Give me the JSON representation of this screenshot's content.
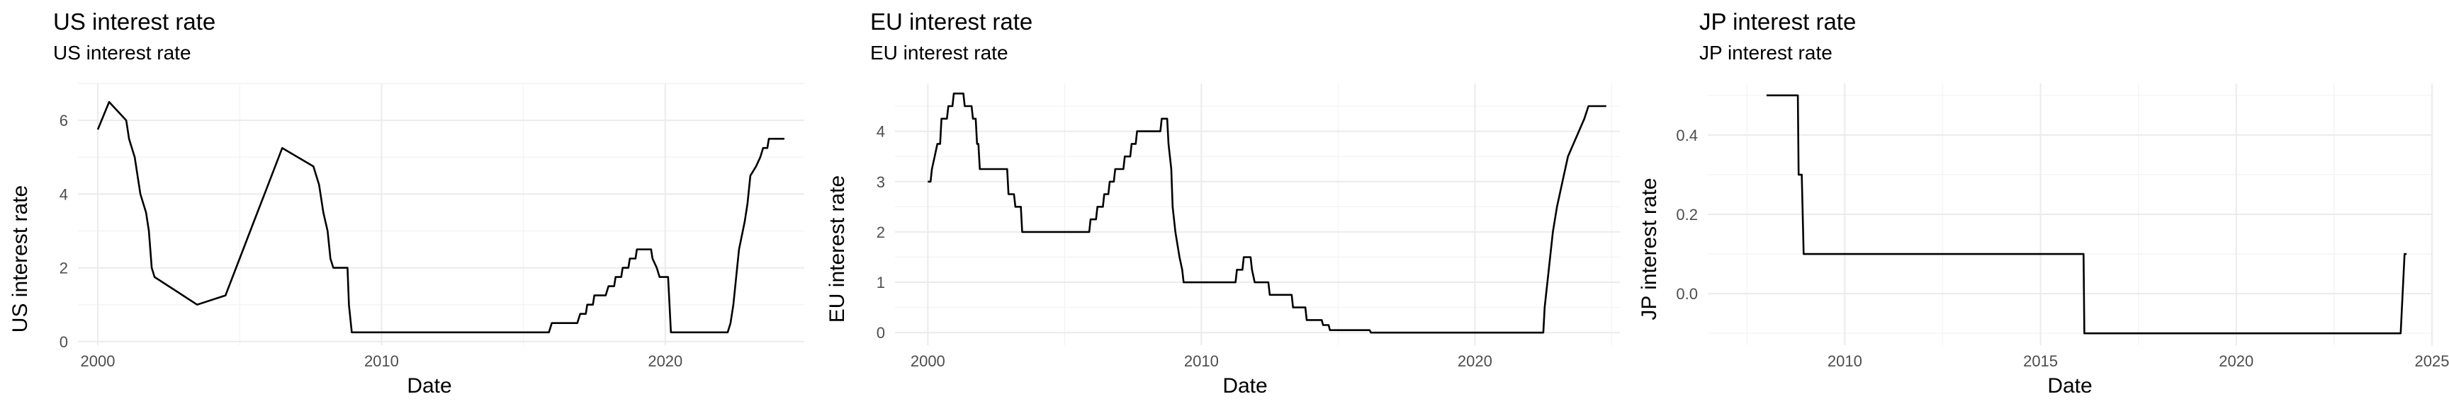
{
  "chart_data": [
    {
      "type": "line",
      "title": "US interest rate",
      "subtitle": "US interest rate",
      "xlabel": "Date",
      "ylabel": "US interest rate",
      "xlim": [
        1999.3,
        2024.9
      ],
      "ylim": [
        -0.1,
        7.0
      ],
      "x_ticks": [
        2000,
        2010,
        2020
      ],
      "y_ticks": [
        0,
        2,
        4,
        6
      ],
      "grid": true,
      "legend": "none",
      "series": [
        {
          "name": "US interest rate",
          "points": [
            [
              2000.0,
              5.75
            ],
            [
              2000.4,
              6.5
            ],
            [
              2001.0,
              6.0
            ],
            [
              2001.1,
              5.5
            ],
            [
              2001.3,
              5.0
            ],
            [
              2001.4,
              4.5
            ],
            [
              2001.5,
              4.0
            ],
            [
              2001.6,
              3.75
            ],
            [
              2001.7,
              3.5
            ],
            [
              2001.8,
              3.0
            ],
            [
              2001.85,
              2.5
            ],
            [
              2001.9,
              2.0
            ],
            [
              2002.0,
              1.75
            ],
            [
              2003.0,
              1.25
            ],
            [
              2003.5,
              1.0
            ],
            [
              2004.5,
              1.25
            ],
            [
              2005.0,
              2.25
            ],
            [
              2005.5,
              3.25
            ],
            [
              2006.0,
              4.25
            ],
            [
              2006.5,
              5.25
            ],
            [
              2007.6,
              4.75
            ],
            [
              2007.8,
              4.25
            ],
            [
              2007.95,
              3.5
            ],
            [
              2008.1,
              3.0
            ],
            [
              2008.2,
              2.25
            ],
            [
              2008.3,
              2.0
            ],
            [
              2008.8,
              2.0
            ],
            [
              2008.85,
              1.0
            ],
            [
              2008.95,
              0.25
            ],
            [
              2015.9,
              0.25
            ],
            [
              2016.0,
              0.5
            ],
            [
              2016.9,
              0.5
            ],
            [
              2017.0,
              0.75
            ],
            [
              2017.2,
              0.75
            ],
            [
              2017.25,
              1.0
            ],
            [
              2017.45,
              1.0
            ],
            [
              2017.5,
              1.25
            ],
            [
              2017.9,
              1.25
            ],
            [
              2018.0,
              1.5
            ],
            [
              2018.2,
              1.5
            ],
            [
              2018.25,
              1.75
            ],
            [
              2018.45,
              1.75
            ],
            [
              2018.5,
              2.0
            ],
            [
              2018.7,
              2.0
            ],
            [
              2018.75,
              2.25
            ],
            [
              2018.95,
              2.25
            ],
            [
              2019.0,
              2.5
            ],
            [
              2019.5,
              2.5
            ],
            [
              2019.55,
              2.25
            ],
            [
              2019.7,
              2.0
            ],
            [
              2019.8,
              1.75
            ],
            [
              2020.1,
              1.75
            ],
            [
              2020.15,
              1.0
            ],
            [
              2020.2,
              0.25
            ],
            [
              2022.2,
              0.25
            ],
            [
              2022.3,
              0.5
            ],
            [
              2022.4,
              1.0
            ],
            [
              2022.5,
              1.75
            ],
            [
              2022.6,
              2.5
            ],
            [
              2022.8,
              3.25
            ],
            [
              2022.9,
              3.75
            ],
            [
              2023.0,
              4.5
            ],
            [
              2023.2,
              4.75
            ],
            [
              2023.35,
              5.0
            ],
            [
              2023.45,
              5.25
            ],
            [
              2023.6,
              5.25
            ],
            [
              2023.65,
              5.5
            ],
            [
              2024.2,
              5.5
            ]
          ]
        }
      ]
    },
    {
      "type": "line",
      "title": "EU interest rate",
      "subtitle": "EU interest rate",
      "xlabel": "Date",
      "ylabel": "EU interest rate",
      "xlim": [
        1998.8,
        2025.3
      ],
      "ylim": [
        -0.25,
        4.95
      ],
      "x_ticks": [
        2000,
        2010,
        2020
      ],
      "y_ticks": [
        0,
        1,
        2,
        3,
        4
      ],
      "grid": true,
      "legend": "none",
      "series": [
        {
          "name": "EU interest rate",
          "points": [
            [
              2000.0,
              3.0
            ],
            [
              2000.1,
              3.0
            ],
            [
              2000.15,
              3.25
            ],
            [
              2000.25,
              3.5
            ],
            [
              2000.35,
              3.75
            ],
            [
              2000.45,
              3.75
            ],
            [
              2000.5,
              4.25
            ],
            [
              2000.7,
              4.25
            ],
            [
              2000.75,
              4.5
            ],
            [
              2000.9,
              4.5
            ],
            [
              2000.95,
              4.75
            ],
            [
              2001.3,
              4.75
            ],
            [
              2001.35,
              4.5
            ],
            [
              2001.6,
              4.5
            ],
            [
              2001.65,
              4.25
            ],
            [
              2001.75,
              4.25
            ],
            [
              2001.8,
              3.75
            ],
            [
              2001.85,
              3.75
            ],
            [
              2001.9,
              3.25
            ],
            [
              2002.9,
              3.25
            ],
            [
              2002.95,
              2.75
            ],
            [
              2003.15,
              2.75
            ],
            [
              2003.2,
              2.5
            ],
            [
              2003.4,
              2.5
            ],
            [
              2003.45,
              2.0
            ],
            [
              2005.9,
              2.0
            ],
            [
              2005.95,
              2.25
            ],
            [
              2006.15,
              2.25
            ],
            [
              2006.2,
              2.5
            ],
            [
              2006.4,
              2.5
            ],
            [
              2006.45,
              2.75
            ],
            [
              2006.6,
              2.75
            ],
            [
              2006.65,
              3.0
            ],
            [
              2006.8,
              3.0
            ],
            [
              2006.85,
              3.25
            ],
            [
              2007.15,
              3.25
            ],
            [
              2007.2,
              3.5
            ],
            [
              2007.4,
              3.5
            ],
            [
              2007.45,
              3.75
            ],
            [
              2007.6,
              3.75
            ],
            [
              2007.65,
              4.0
            ],
            [
              2008.5,
              4.0
            ],
            [
              2008.55,
              4.25
            ],
            [
              2008.75,
              4.25
            ],
            [
              2008.8,
              3.75
            ],
            [
              2008.9,
              3.25
            ],
            [
              2008.95,
              2.5
            ],
            [
              2009.05,
              2.0
            ],
            [
              2009.2,
              1.5
            ],
            [
              2009.3,
              1.25
            ],
            [
              2009.35,
              1.0
            ],
            [
              2011.25,
              1.0
            ],
            [
              2011.3,
              1.25
            ],
            [
              2011.5,
              1.25
            ],
            [
              2011.55,
              1.5
            ],
            [
              2011.8,
              1.5
            ],
            [
              2011.85,
              1.25
            ],
            [
              2011.95,
              1.0
            ],
            [
              2012.45,
              1.0
            ],
            [
              2012.5,
              0.75
            ],
            [
              2013.3,
              0.75
            ],
            [
              2013.35,
              0.5
            ],
            [
              2013.8,
              0.5
            ],
            [
              2013.85,
              0.25
            ],
            [
              2014.4,
              0.25
            ],
            [
              2014.45,
              0.15
            ],
            [
              2014.65,
              0.15
            ],
            [
              2014.7,
              0.05
            ],
            [
              2016.15,
              0.05
            ],
            [
              2016.2,
              0.0
            ],
            [
              2022.5,
              0.0
            ],
            [
              2022.55,
              0.5
            ],
            [
              2022.7,
              1.25
            ],
            [
              2022.85,
              2.0
            ],
            [
              2023.0,
              2.5
            ],
            [
              2023.2,
              3.0
            ],
            [
              2023.4,
              3.5
            ],
            [
              2023.6,
              3.75
            ],
            [
              2023.8,
              4.0
            ],
            [
              2024.0,
              4.25
            ],
            [
              2024.15,
              4.5
            ],
            [
              2024.8,
              4.5
            ]
          ]
        }
      ]
    },
    {
      "type": "line",
      "title": "JP interest rate",
      "subtitle": "JP interest rate",
      "xlabel": "Date",
      "ylabel": "JP interest rate",
      "xlim": [
        2006.5,
        2025.0
      ],
      "ylim": [
        -0.13,
        0.53
      ],
      "x_ticks": [
        2010,
        2015,
        2020,
        2025
      ],
      "y_ticks": [
        0.0,
        0.2,
        0.4
      ],
      "grid": true,
      "legend": "none",
      "series": [
        {
          "name": "JP interest rate",
          "points": [
            [
              2008.0,
              0.5
            ],
            [
              2008.8,
              0.5
            ],
            [
              2008.82,
              0.3
            ],
            [
              2008.9,
              0.3
            ],
            [
              2008.95,
              0.1
            ],
            [
              2016.1,
              0.1
            ],
            [
              2016.12,
              -0.1
            ],
            [
              2024.2,
              -0.1
            ],
            [
              2024.3,
              0.1
            ],
            [
              2024.35,
              0.1
            ]
          ]
        }
      ]
    }
  ]
}
